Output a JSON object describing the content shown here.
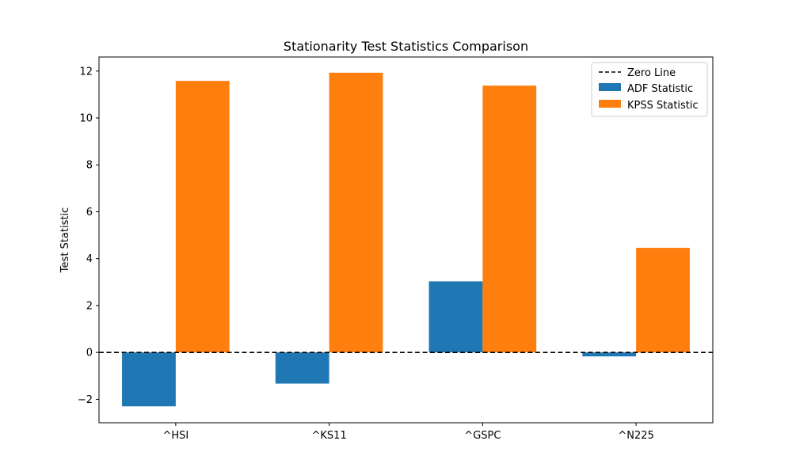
{
  "chart_data": {
    "type": "bar",
    "title": "Stationarity Test Statistics Comparison",
    "xlabel": "",
    "ylabel": "Test Statistic",
    "categories": [
      "^HSI",
      "^KS11",
      "^GSPC",
      "^N225"
    ],
    "series": [
      {
        "name": "ADF Statistic",
        "values": [
          -2.3,
          -1.33,
          3.03,
          -0.17
        ],
        "color": "#1f77b4"
      },
      {
        "name": "KPSS Statistic",
        "values": [
          11.58,
          11.93,
          11.38,
          4.46
        ],
        "color": "#ff7f0e"
      }
    ],
    "ylim": [
      -3.0,
      12.6
    ],
    "yticks": [
      -2,
      0,
      2,
      4,
      6,
      8,
      10,
      12
    ],
    "ytick_labels": [
      "−2",
      "0",
      "2",
      "4",
      "6",
      "8",
      "10",
      "12"
    ],
    "reference_line": {
      "label": "Zero Line",
      "y": 0,
      "style": "dashed",
      "color": "#000000"
    },
    "legend_position": "top-right",
    "grid": false
  }
}
